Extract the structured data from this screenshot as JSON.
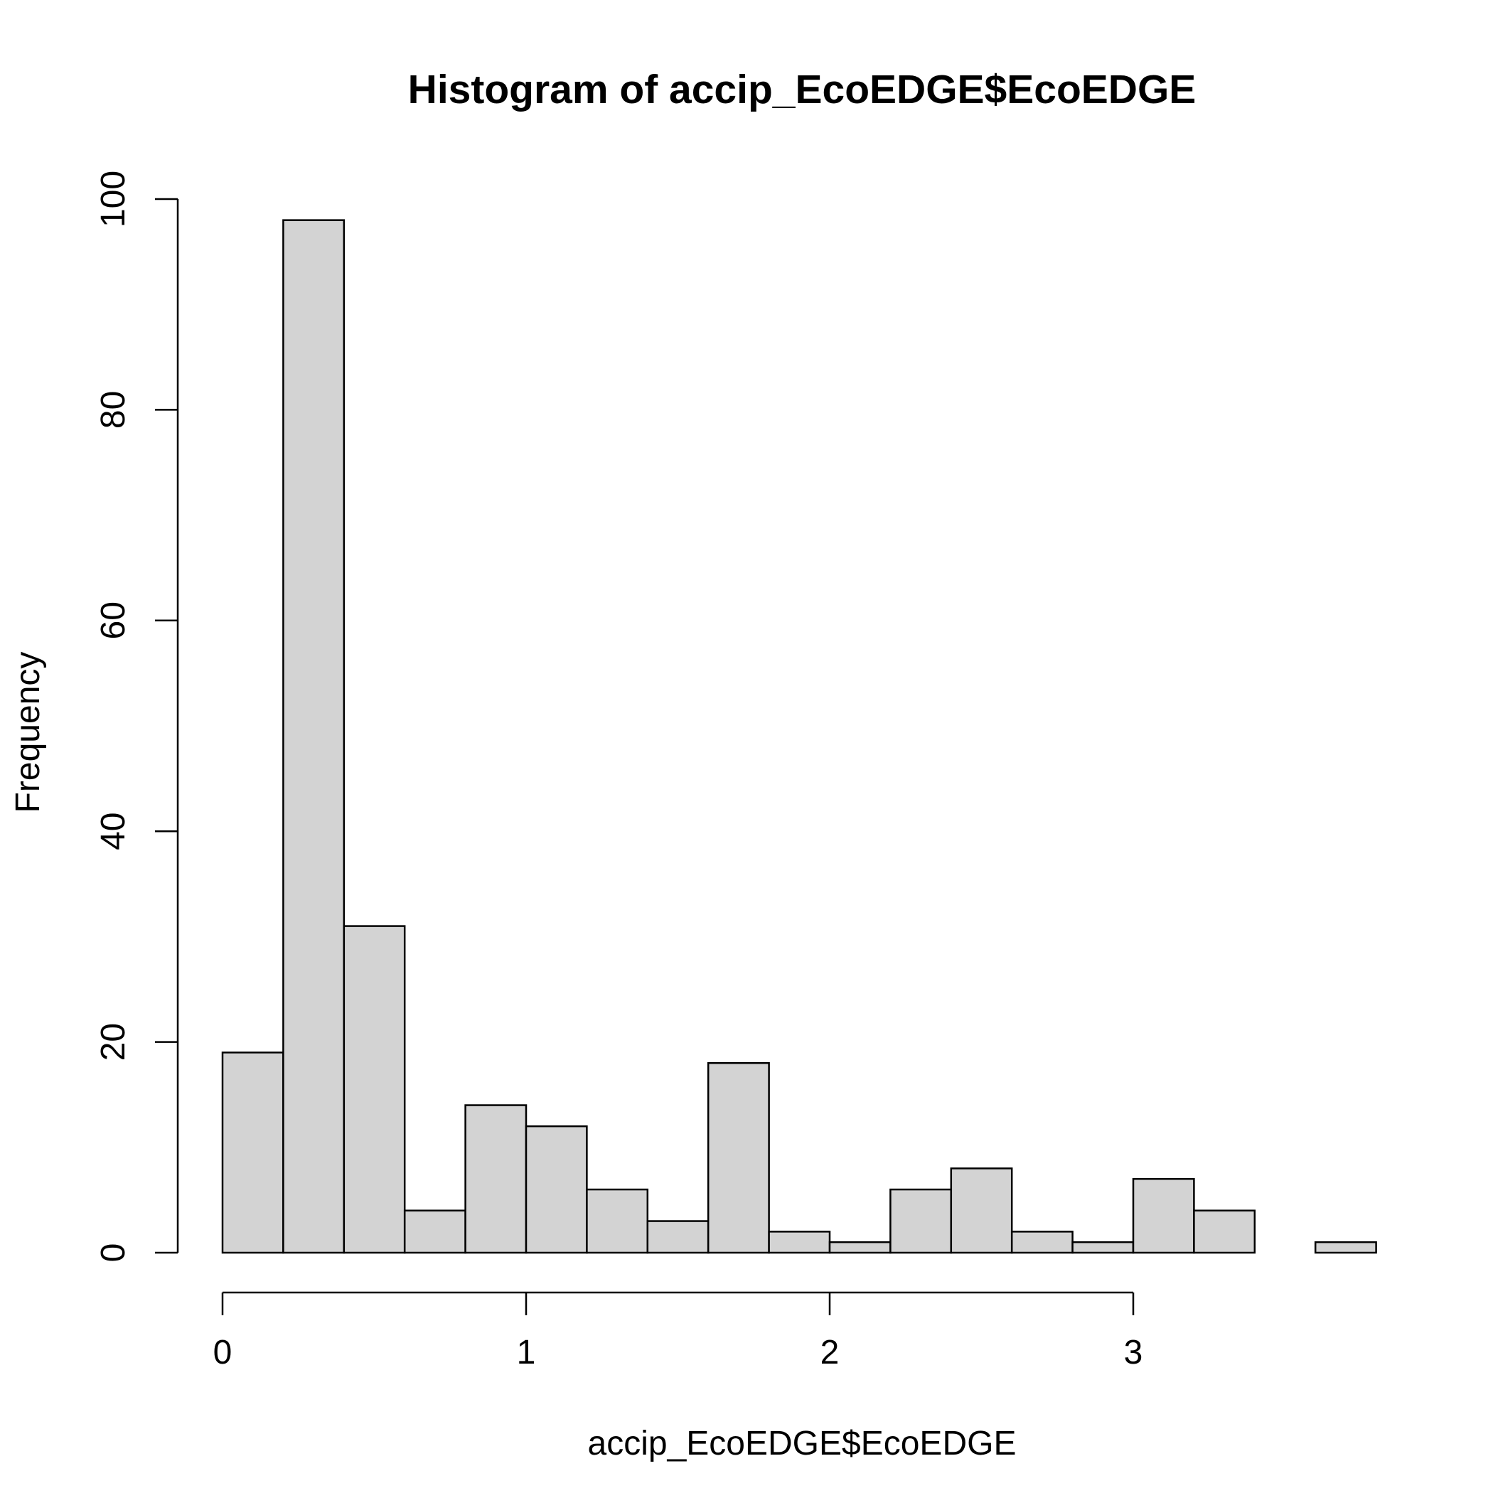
{
  "chart_data": {
    "type": "bar",
    "title": "Histogram of accip_EcoEDGE$EcoEDGE",
    "xlabel": "accip_EcoEDGE$EcoEDGE",
    "ylabel": "Frequency",
    "bin_width": 0.2,
    "bin_starts": [
      0,
      0.2,
      0.4,
      0.6,
      0.8,
      1.0,
      1.2,
      1.4,
      1.6,
      1.8,
      2.0,
      2.2,
      2.4,
      2.6,
      2.8,
      3.0,
      3.2,
      3.4,
      3.6
    ],
    "values": [
      19,
      98,
      31,
      4,
      14,
      12,
      6,
      3,
      18,
      2,
      1,
      6,
      8,
      2,
      1,
      7,
      4,
      0,
      1
    ],
    "xlim": [
      0,
      3.8
    ],
    "ylim": [
      0,
      100
    ],
    "x_ticks": [
      0,
      1,
      2,
      3
    ],
    "y_ticks": [
      0,
      20,
      40,
      60,
      80,
      100
    ],
    "grid": false,
    "colors": {
      "bar_fill": "#d3d3d3",
      "bar_stroke": "#000000",
      "axis": "#000000"
    }
  }
}
